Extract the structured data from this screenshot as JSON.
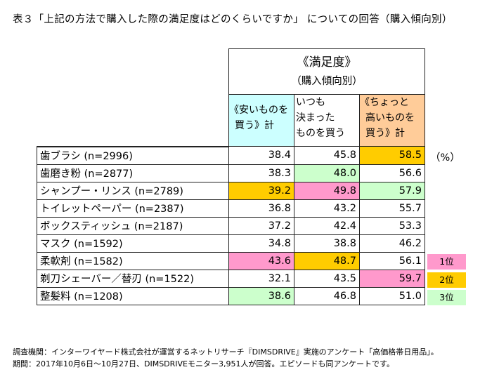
{
  "title": "表３「上記の方法で購入した際の満足度はどのくらいですか」 についての回答（購入傾向別）",
  "chart_data": {
    "type": "table",
    "header": {
      "main": "《満足度》",
      "sub": "（購入傾向別）"
    },
    "columns": [
      {
        "lines": [
          "《安いものを",
          "買う》計"
        ],
        "color": "#ccffff"
      },
      {
        "lines": [
          "いつも",
          "決まった",
          "ものを買う"
        ],
        "color": "#ffffff"
      },
      {
        "lines": [
          "《ちょっと",
          "高いものを",
          "買う》計"
        ],
        "color": "#ffcc99"
      }
    ],
    "unit": "（%）",
    "rows": [
      {
        "label": "歯ブラシ (n=2996)",
        "values": [
          "38.4",
          "45.8",
          "58.5"
        ],
        "ranks": [
          0,
          0,
          2
        ]
      },
      {
        "label": "歯磨き粉 (n=2877)",
        "values": [
          "38.3",
          "48.0",
          "56.6"
        ],
        "ranks": [
          0,
          3,
          0
        ]
      },
      {
        "label": "シャンプー・リンス (n=2789)",
        "values": [
          "39.2",
          "49.8",
          "57.9"
        ],
        "ranks": [
          2,
          1,
          3
        ]
      },
      {
        "label": "トイレットペーパー (n=2387)",
        "values": [
          "36.8",
          "43.2",
          "55.7"
        ],
        "ranks": [
          0,
          0,
          0
        ]
      },
      {
        "label": "ボックスティッシュ (n=2187)",
        "values": [
          "37.2",
          "42.4",
          "53.3"
        ],
        "ranks": [
          0,
          0,
          0
        ]
      },
      {
        "label": "マスク (n=1592)",
        "values": [
          "34.8",
          "38.8",
          "46.2"
        ],
        "ranks": [
          0,
          0,
          0
        ]
      },
      {
        "label": "柔軟剤 (n=1582)",
        "values": [
          "43.6",
          "48.7",
          "56.1"
        ],
        "ranks": [
          1,
          2,
          0
        ]
      },
      {
        "label": "剃刀シェーバー／替刃 (n=1522)",
        "values": [
          "32.1",
          "43.5",
          "59.7"
        ],
        "ranks": [
          0,
          0,
          1
        ]
      },
      {
        "label": "整髪料 (n=1208)",
        "values": [
          "38.6",
          "46.8",
          "51.0"
        ],
        "ranks": [
          3,
          0,
          0
        ]
      }
    ],
    "legend": [
      {
        "label": "1位",
        "color": "#ff99cc"
      },
      {
        "label": "2位",
        "color": "#ffcc00"
      },
      {
        "label": "3位",
        "color": "#ccffcc"
      }
    ]
  },
  "footnotes": [
    "調査機関：インターワイヤード株式会社が運営するネットリサーチ『DIMSDRIVE』実施のアンケート「高価格帯日用品」。",
    "期間：2017年10月6日～10月27日、DIMSDRIVEモニター3,951人が回答。エピソードも同アンケートです。"
  ]
}
